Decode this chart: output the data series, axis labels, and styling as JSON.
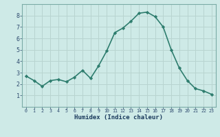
{
  "x": [
    0,
    1,
    2,
    3,
    4,
    5,
    6,
    7,
    8,
    9,
    10,
    11,
    12,
    13,
    14,
    15,
    16,
    17,
    18,
    19,
    20,
    21,
    22,
    23
  ],
  "y": [
    2.7,
    2.3,
    1.8,
    2.3,
    2.4,
    2.2,
    2.6,
    3.2,
    2.5,
    3.6,
    4.9,
    6.5,
    6.9,
    7.5,
    8.2,
    8.3,
    7.9,
    7.0,
    5.0,
    3.4,
    2.3,
    1.6,
    1.4,
    1.1
  ],
  "line_color": "#2e7d6e",
  "marker": "D",
  "marker_size": 2.2,
  "bg_color": "#ceeae7",
  "grid_color": "#b8d4d0",
  "axis_label": "Humidex (Indice chaleur)",
  "tick_label_color": "#2e4a6e",
  "xlabel_color": "#1a3a5c",
  "ylim": [
    0,
    9
  ],
  "xlim": [
    -0.5,
    23.5
  ],
  "yticks": [
    1,
    2,
    3,
    4,
    5,
    6,
    7,
    8
  ],
  "xticks": [
    0,
    1,
    2,
    3,
    4,
    5,
    6,
    7,
    8,
    9,
    10,
    11,
    12,
    13,
    14,
    15,
    16,
    17,
    18,
    19,
    20,
    21,
    22,
    23
  ],
  "line_width": 1.2,
  "spine_color": "#7aaba6"
}
